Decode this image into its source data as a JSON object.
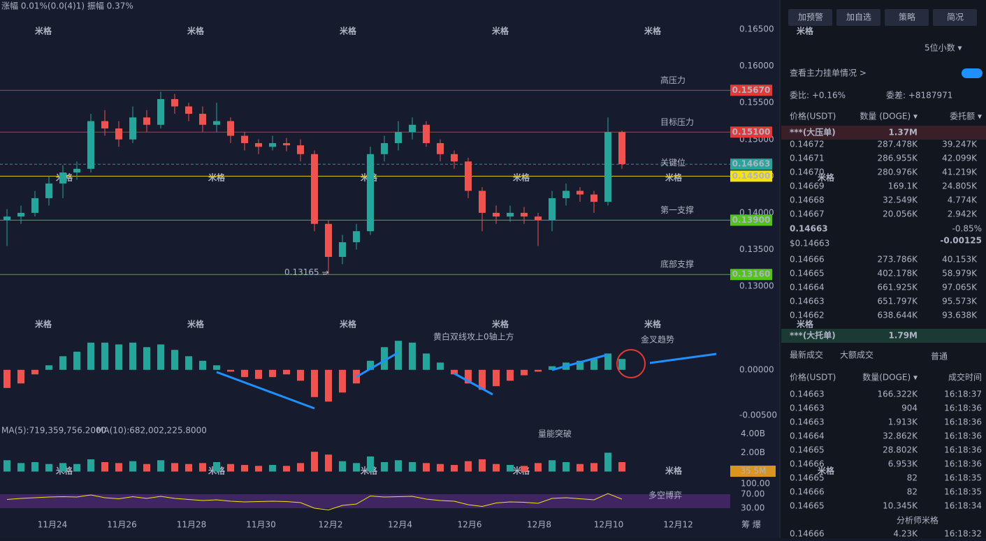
{
  "header": {
    "stats": "涨幅 0.01%(0.0(4)1)  振幅 0.37%",
    "watermark": "米格",
    "brand": "分析师米格",
    "corner": "筹  爆"
  },
  "price_chart": {
    "type": "candlestick",
    "dates": [
      "11月24",
      "11月26",
      "11月28",
      "11月30",
      "12月2",
      "12月4",
      "12月6",
      "12月8",
      "12月10",
      "12月12"
    ],
    "ylim": [
      0.127,
      0.169
    ],
    "yticks": [
      {
        "value": 0.165,
        "label": "0.16500"
      },
      {
        "value": 0.16,
        "label": "0.16000"
      },
      {
        "value": 0.155,
        "label": "0.15500"
      },
      {
        "value": 0.15,
        "label": "0.15000"
      },
      {
        "value": 0.145,
        "label": "0.14500"
      },
      {
        "value": 0.14,
        "label": "0.14000"
      },
      {
        "value": 0.135,
        "label": "0.13500"
      },
      {
        "value": 0.13,
        "label": "0.13000"
      }
    ],
    "colors": {
      "up": "#26a69a",
      "down": "#ef5350"
    },
    "candles": [
      [
        0.139,
        0.1405,
        0.1355,
        0.1395
      ],
      [
        0.1395,
        0.141,
        0.1385,
        0.14
      ],
      [
        0.14,
        0.143,
        0.1395,
        0.142
      ],
      [
        0.142,
        0.145,
        0.141,
        0.144
      ],
      [
        0.144,
        0.1465,
        0.142,
        0.1455
      ],
      [
        0.1455,
        0.147,
        0.1445,
        0.146
      ],
      [
        0.146,
        0.1535,
        0.1455,
        0.1525
      ],
      [
        0.1525,
        0.154,
        0.1505,
        0.1515
      ],
      [
        0.1515,
        0.1525,
        0.149,
        0.15
      ],
      [
        0.15,
        0.1545,
        0.1495,
        0.153
      ],
      [
        0.153,
        0.154,
        0.151,
        0.152
      ],
      [
        0.152,
        0.1565,
        0.1515,
        0.1555
      ],
      [
        0.1555,
        0.1562,
        0.1535,
        0.1545
      ],
      [
        0.1545,
        0.155,
        0.1525,
        0.1535
      ],
      [
        0.1535,
        0.1545,
        0.151,
        0.152
      ],
      [
        0.152,
        0.155,
        0.151,
        0.1525
      ],
      [
        0.1525,
        0.153,
        0.1495,
        0.1505
      ],
      [
        0.1505,
        0.151,
        0.1485,
        0.1495
      ],
      [
        0.1495,
        0.15,
        0.148,
        0.149
      ],
      [
        0.149,
        0.1505,
        0.1485,
        0.1495
      ],
      [
        0.1495,
        0.1502,
        0.1484,
        0.1492
      ],
      [
        0.1492,
        0.15,
        0.147,
        0.148
      ],
      [
        0.148,
        0.1485,
        0.1375,
        0.1385
      ],
      [
        0.1385,
        0.139,
        0.13165,
        0.134
      ],
      [
        0.134,
        0.137,
        0.133,
        0.136
      ],
      [
        0.136,
        0.1385,
        0.135,
        0.1375
      ],
      [
        0.1375,
        0.149,
        0.137,
        0.148
      ],
      [
        0.148,
        0.1505,
        0.147,
        0.1495
      ],
      [
        0.1495,
        0.1525,
        0.1485,
        0.151
      ],
      [
        0.151,
        0.153,
        0.15,
        0.152
      ],
      [
        0.152,
        0.1525,
        0.149,
        0.1495
      ],
      [
        0.1495,
        0.15,
        0.147,
        0.148
      ],
      [
        0.148,
        0.1485,
        0.146,
        0.147
      ],
      [
        0.147,
        0.1475,
        0.142,
        0.143
      ],
      [
        0.143,
        0.1435,
        0.1375,
        0.14
      ],
      [
        0.14,
        0.141,
        0.1385,
        0.1395
      ],
      [
        0.1395,
        0.141,
        0.1388,
        0.14
      ],
      [
        0.14,
        0.1408,
        0.1385,
        0.1395
      ],
      [
        0.1395,
        0.14,
        0.1355,
        0.139
      ],
      [
        0.139,
        0.143,
        0.1375,
        0.142
      ],
      [
        0.142,
        0.144,
        0.141,
        0.143
      ],
      [
        0.143,
        0.1435,
        0.1415,
        0.1425
      ],
      [
        0.1425,
        0.143,
        0.14,
        0.1415
      ],
      [
        0.1415,
        0.153,
        0.141,
        0.151
      ],
      [
        0.151,
        0.1512,
        0.146,
        0.14663
      ]
    ],
    "levels": [
      {
        "value": 0.1567,
        "label": "0.15670",
        "color": "#e53935",
        "note": "高压力"
      },
      {
        "value": 0.151,
        "label": "0.15100",
        "color": "#e53935",
        "note": "目标压力"
      },
      {
        "value": 0.14663,
        "label": "0.14663",
        "color": "#26a69a"
      },
      {
        "value": 0.145,
        "label": "0.14500",
        "color": "#f5e20f",
        "note": "关键位"
      },
      {
        "value": 0.139,
        "label": "0.13900",
        "color": "#52c41a",
        "note": "第一支撑"
      },
      {
        "value": 0.1316,
        "label": "0.13160",
        "color": "#52c41a",
        "note": "底部支撑"
      }
    ],
    "low_marker": {
      "value": 0.13165,
      "label": "0.13165 →"
    }
  },
  "macd": {
    "type": "bar",
    "ylim": [
      -0.0058,
      0.0046
    ],
    "yticks": [
      {
        "value": 0,
        "label": "0.00000"
      },
      {
        "value": -0.005,
        "label": "-0.00500"
      }
    ],
    "annotation": "黄白双线攻上0轴上方",
    "annotation2": "金叉趋势",
    "values": [
      -0.002,
      -0.0015,
      -0.0005,
      0.0005,
      0.0015,
      0.002,
      0.003,
      0.003,
      0.0028,
      0.003,
      0.0025,
      0.0028,
      0.0022,
      0.0015,
      0.001,
      0.0005,
      -0.0002,
      -0.0008,
      -0.001,
      -0.0008,
      -0.0005,
      -0.0012,
      -0.003,
      -0.0035,
      -0.0025,
      -0.0015,
      0.001,
      0.0025,
      0.0032,
      0.003,
      0.0018,
      0.0008,
      -0.0005,
      -0.0015,
      -0.0022,
      -0.0018,
      -0.0012,
      -0.0006,
      -0.0002,
      0.0004,
      0.0008,
      0.001,
      0.0012,
      0.0018,
      0.0012
    ]
  },
  "volume": {
    "type": "bar",
    "ylim": [
      0,
      5
    ],
    "yticks": [
      {
        "value": 4,
        "label": "4.00B"
      },
      {
        "value": 2,
        "label": "2.00B"
      }
    ],
    "ma5": "MA(5):719,359,756.2000",
    "ma10": "MA(10):682,002,225.8000",
    "annotation": "量能突破",
    "current": {
      "value": 0.0355,
      "label": "35.5M"
    },
    "values": [
      1.2,
      0.9,
      1.0,
      0.8,
      0.9,
      0.8,
      1.3,
      1.0,
      0.9,
      1.1,
      0.8,
      1.2,
      0.9,
      0.8,
      0.9,
      1.0,
      0.8,
      0.7,
      0.6,
      0.7,
      0.6,
      0.9,
      2.1,
      1.8,
      1.1,
      0.9,
      1.6,
      1.0,
      1.2,
      1.0,
      0.9,
      0.8,
      0.7,
      1.1,
      1.3,
      0.8,
      0.7,
      0.6,
      0.9,
      1.2,
      1.0,
      0.8,
      0.9,
      2.0,
      1.0
    ]
  },
  "rsi": {
    "type": "line",
    "ylim": [
      0,
      110
    ],
    "yticks": [
      {
        "value": 100,
        "label": "100.00"
      },
      {
        "value": 70,
        "label": "70.00"
      },
      {
        "value": 30,
        "label": "30.00"
      }
    ],
    "annotation": "多空博弈",
    "values": [
      55,
      58,
      60,
      62,
      63,
      62,
      68,
      60,
      57,
      63,
      58,
      64,
      58,
      55,
      52,
      54,
      50,
      48,
      49,
      50,
      49,
      46,
      30,
      25,
      38,
      42,
      65,
      62,
      63,
      64,
      56,
      52,
      50,
      40,
      35,
      45,
      48,
      47,
      44,
      58,
      60,
      57,
      54,
      72,
      56
    ]
  },
  "panel": {
    "buttons": [
      "加预警",
      "加自选",
      "策略",
      "简况"
    ],
    "decimals": "5位小数 ▾",
    "depth_link": "查看主力挂单情况 >",
    "ratio": "委比: +0.16%",
    "diff": "委差: +8187971",
    "book_headers": [
      "价格(USDT)",
      "数量 (DOGE) ▾",
      "委托额 ▾"
    ],
    "big_ask": {
      "label": "***(大压单)",
      "qty": "1.37M"
    },
    "asks": [
      [
        "0.14672",
        "287.478K",
        "39.247K"
      ],
      [
        "0.14671",
        "286.955K",
        "42.099K"
      ],
      [
        "0.14670",
        "280.976K",
        "41.219K"
      ],
      [
        "0.14669",
        "169.1K",
        "24.805K"
      ],
      [
        "0.14668",
        "32.549K",
        "4.774K"
      ],
      [
        "0.14667",
        "20.056K",
        "2.942K"
      ]
    ],
    "last": "0.14663",
    "last_usd": "$0.14663",
    "change_pct": "-0.85%",
    "change": "-0.00125",
    "bids": [
      [
        "0.14666",
        "273.786K",
        "40.153K"
      ],
      [
        "0.14665",
        "402.178K",
        "58.979K"
      ],
      [
        "0.14664",
        "661.925K",
        "97.065K"
      ],
      [
        "0.14663",
        "651.797K",
        "95.573K"
      ],
      [
        "0.14662",
        "638.644K",
        "93.638K"
      ]
    ],
    "big_bid": {
      "label": "***(大托单)",
      "qty": "1.79M"
    },
    "tabs": [
      "最新成交",
      "大额成交"
    ],
    "normal": "普通",
    "trade_headers": [
      "价格(USDT)",
      "数量(DOGE) ▾",
      "成交时间"
    ],
    "trades": [
      [
        "0.14663",
        "166.322K",
        "16:18:37",
        "#1dbf8a"
      ],
      [
        "0.14663",
        "904",
        "16:18:36",
        "#1dbf8a"
      ],
      [
        "0.14663",
        "1.913K",
        "16:18:36",
        "#e0474c"
      ],
      [
        "0.14664",
        "32.862K",
        "16:18:36",
        "#e0474c"
      ],
      [
        "0.14665",
        "28.802K",
        "16:18:36",
        "#e0474c"
      ],
      [
        "0.14666",
        "6.953K",
        "16:18:36",
        "#1dbf8a"
      ],
      [
        "0.14665",
        "82",
        "16:18:35",
        "#e0474c"
      ],
      [
        "0.14666",
        "82",
        "16:18:35",
        "#1dbf8a"
      ],
      [
        "0.14665",
        "10.345K",
        "16:18:34",
        "#e0474c"
      ],
      [
        "0.14666",
        "4.23K",
        "16:18:32",
        "#1dbf8a"
      ]
    ]
  }
}
